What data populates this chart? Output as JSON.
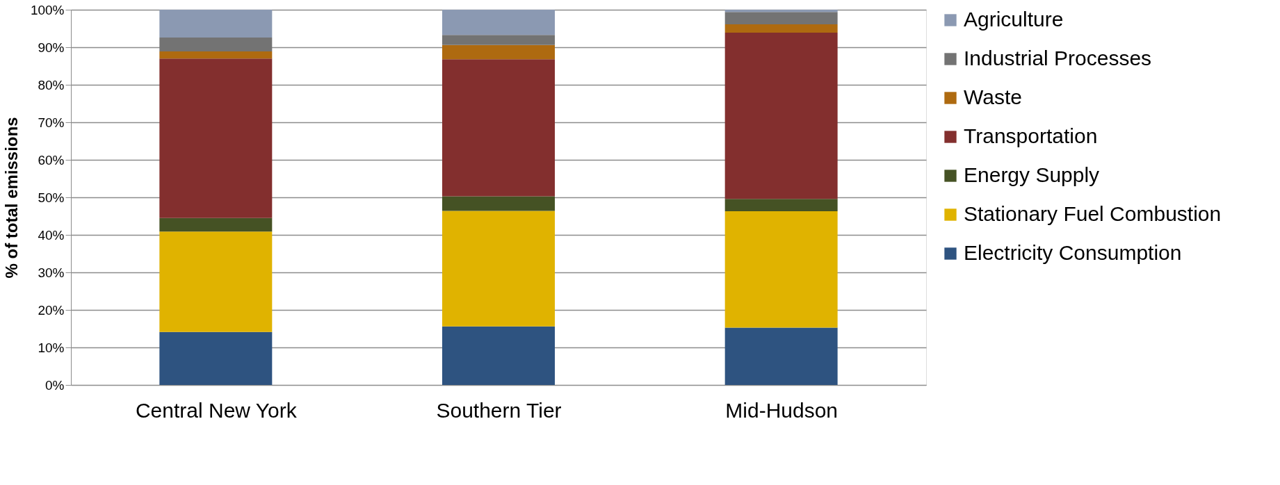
{
  "chart_data": {
    "type": "bar",
    "stacked": true,
    "ylabel": "% of total emissions",
    "categories": [
      "Central New York",
      "Southern Tier",
      "Mid-Hudson"
    ],
    "series": [
      {
        "name": "Electricity Consumption",
        "color": "#2e5380",
        "values": [
          14.1,
          15.6,
          15.3
        ]
      },
      {
        "name": "Stationary Fuel Combustion",
        "color": "#e0b300",
        "values": [
          26.8,
          30.8,
          31.0
        ]
      },
      {
        "name": "Energy Supply",
        "color": "#455224",
        "values": [
          3.6,
          3.9,
          3.3
        ]
      },
      {
        "name": "Transportation",
        "color": "#832f2e",
        "values": [
          42.5,
          36.5,
          44.3
        ]
      },
      {
        "name": "Waste",
        "color": "#ae6a10",
        "values": [
          1.9,
          3.8,
          2.2
        ]
      },
      {
        "name": "Industrial Processes",
        "color": "#737373",
        "values": [
          3.7,
          2.7,
          3.3
        ]
      },
      {
        "name": "Agriculture",
        "color": "#8b99b2",
        "values": [
          7.4,
          6.7,
          0.6
        ]
      }
    ],
    "ylim": [
      0,
      100
    ],
    "yticks": [
      {
        "value": 0,
        "label": "0%"
      },
      {
        "value": 10,
        "label": "10%"
      },
      {
        "value": 20,
        "label": "20%"
      },
      {
        "value": 30,
        "label": "30%"
      },
      {
        "value": 40,
        "label": "40%"
      },
      {
        "value": 50,
        "label": "50%"
      },
      {
        "value": 60,
        "label": "60%"
      },
      {
        "value": 70,
        "label": "70%"
      },
      {
        "value": 80,
        "label": "80%"
      },
      {
        "value": 90,
        "label": "90%"
      },
      {
        "value": 100,
        "label": "100%"
      }
    ],
    "grid": "y",
    "legend": "right"
  }
}
